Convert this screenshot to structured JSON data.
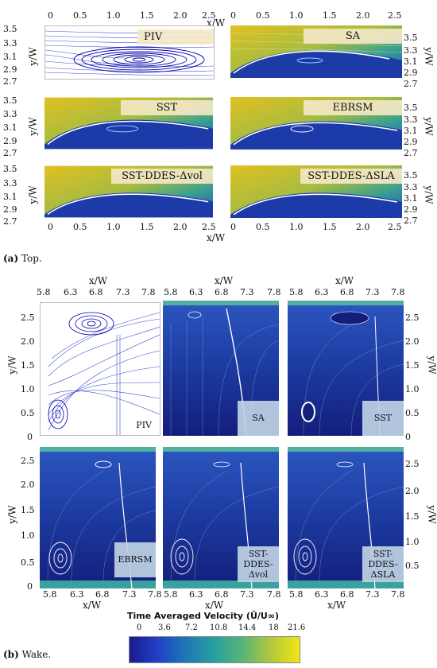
{
  "top": {
    "x_ticks": [
      "0",
      "0.5",
      "1.0",
      "1.5",
      "2.0",
      "2.5"
    ],
    "y_ticks": [
      "3.5",
      "3.3",
      "3.1",
      "2.9",
      "2.7"
    ],
    "x_label": "x/W",
    "y_label": "y/W",
    "panels": [
      "PIV",
      "SA",
      "SST",
      "EBRSM",
      "SST-DDES-Δvol",
      "SST-DDES-ΔSLA"
    ],
    "caption_letter": "(a)",
    "caption_text": " Top."
  },
  "wake": {
    "x_ticks": [
      "5.8",
      "6.3",
      "6.8",
      "7.3",
      "7.8"
    ],
    "y_ticks": [
      "2.5",
      "2.0",
      "1.5",
      "1.0",
      "0.5",
      "0"
    ],
    "x_label": "x/W",
    "y_label": "y/W",
    "panels": [
      "PIV",
      "SA",
      "SST",
      "EBRSM",
      "SST-\nDDES-\nΔvol",
      "SST-\nDDES-\nΔSLA"
    ],
    "caption_letter": "(b)",
    "caption_text": " Wake."
  },
  "colorbar": {
    "title": "Time Averaged Velocity (Ū/U∞)",
    "ticks": [
      "0",
      "3.6",
      "7.2",
      "10.8",
      "14.4",
      "18",
      "21.6"
    ],
    "colors": [
      "#1a1a8c",
      "#2040c8",
      "#1e78b4",
      "#28a0a0",
      "#5ab478",
      "#b4c83c",
      "#f0e614"
    ]
  }
}
